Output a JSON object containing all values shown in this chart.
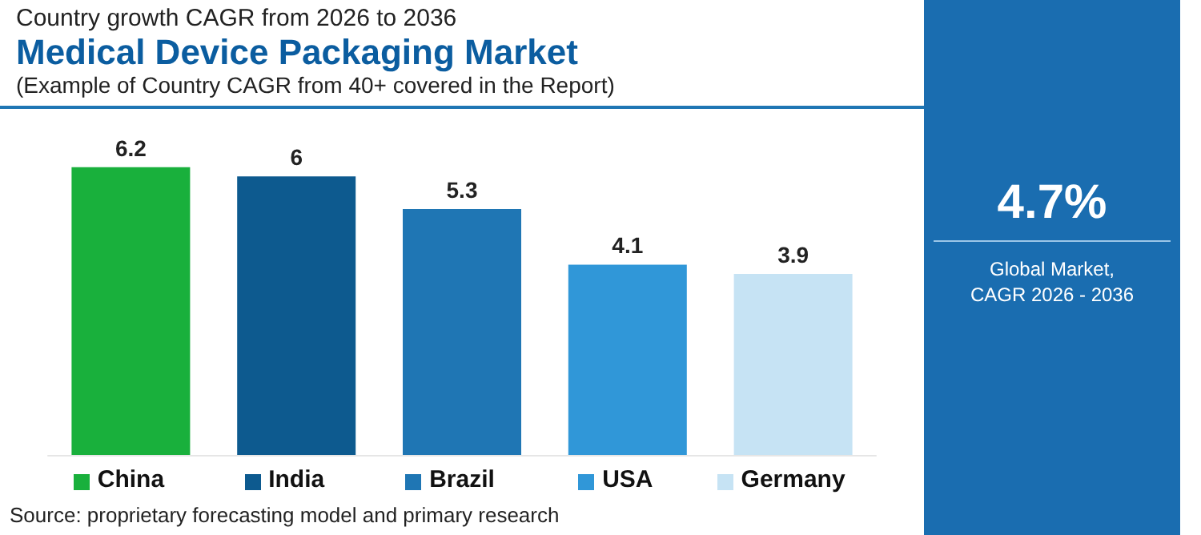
{
  "chart_data": {
    "type": "bar",
    "title": "Medical Device Packaging Market",
    "subtitle": "Country growth CAGR from 2026 to 2036",
    "annotations": [
      "(Example of Country CAGR from 40+ covered in the Report)",
      "4.7%",
      "Global Market,\nCAGR 2026 - 2036",
      "Source: proprietary forecasting model and primary research"
    ],
    "categories": [
      "China",
      "India",
      "Brazil",
      "USA",
      "Germany"
    ],
    "values": [
      6.2,
      6.0,
      5.3,
      4.1,
      3.9
    ],
    "colors": [
      "#19b03c",
      "#0d5a8f",
      "#1f76b4",
      "#3097d8",
      "#c6e3f4"
    ],
    "data_labels": true
  }
}
